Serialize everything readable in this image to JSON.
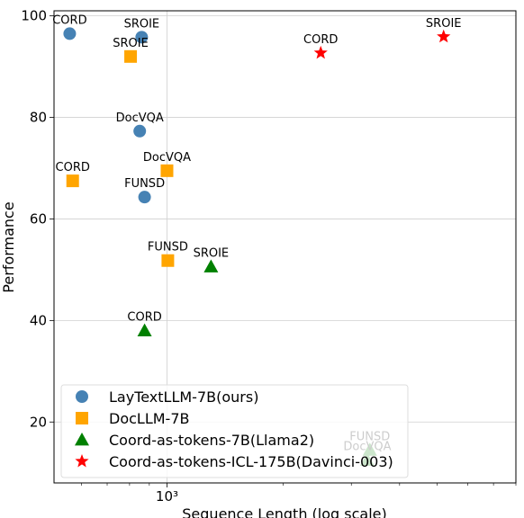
{
  "chart_data": {
    "type": "scatter",
    "xlabel": "Sequence Length (log scale)",
    "ylabel": "Performance",
    "xscale": "log",
    "xlim": [
      510,
      8000
    ],
    "ylim": [
      8,
      101
    ],
    "x_ticks": [
      {
        "value": 1000,
        "label": "10³"
      }
    ],
    "y_ticks": [
      20,
      40,
      60,
      80,
      100
    ],
    "grid": true,
    "legend_position": "lower-left",
    "series": [
      {
        "name": "LayTextLLM-7B(ours)",
        "marker": "circle",
        "color": "#4682B4",
        "points": [
          {
            "label": "CORD",
            "x": 560,
            "y": 96.5
          },
          {
            "label": "SROIE",
            "x": 860,
            "y": 95.8
          },
          {
            "label": "DocVQA",
            "x": 850,
            "y": 77.3
          },
          {
            "label": "FUNSD",
            "x": 875,
            "y": 64.3
          }
        ]
      },
      {
        "name": "DocLLM-7B",
        "marker": "square",
        "color": "#FFA500",
        "points": [
          {
            "label": "SROIE",
            "x": 805,
            "y": 92.0
          },
          {
            "label": "CORD",
            "x": 570,
            "y": 67.5
          },
          {
            "label": "DocVQA",
            "x": 1000,
            "y": 69.5
          },
          {
            "label": "FUNSD",
            "x": 1005,
            "y": 51.8
          }
        ]
      },
      {
        "name": "Coord-as-tokens-7B(Llama2)",
        "marker": "triangle",
        "color": "#008000",
        "points": [
          {
            "label": "SROIE",
            "x": 1300,
            "y": 50.6
          },
          {
            "label": "CORD",
            "x": 875,
            "y": 38.0
          },
          {
            "label": "FUNSD",
            "x": 3350,
            "y": 14.5
          },
          {
            "label": "DocVQA",
            "x": 3300,
            "y": 12.5
          }
        ]
      },
      {
        "name": "Coord-as-tokens-ICL-175B(Davinci-003)",
        "marker": "star",
        "color": "#FF0000",
        "points": [
          {
            "label": "CORD",
            "x": 2500,
            "y": 92.7
          },
          {
            "label": "SROIE",
            "x": 5200,
            "y": 95.9
          }
        ]
      }
    ]
  }
}
